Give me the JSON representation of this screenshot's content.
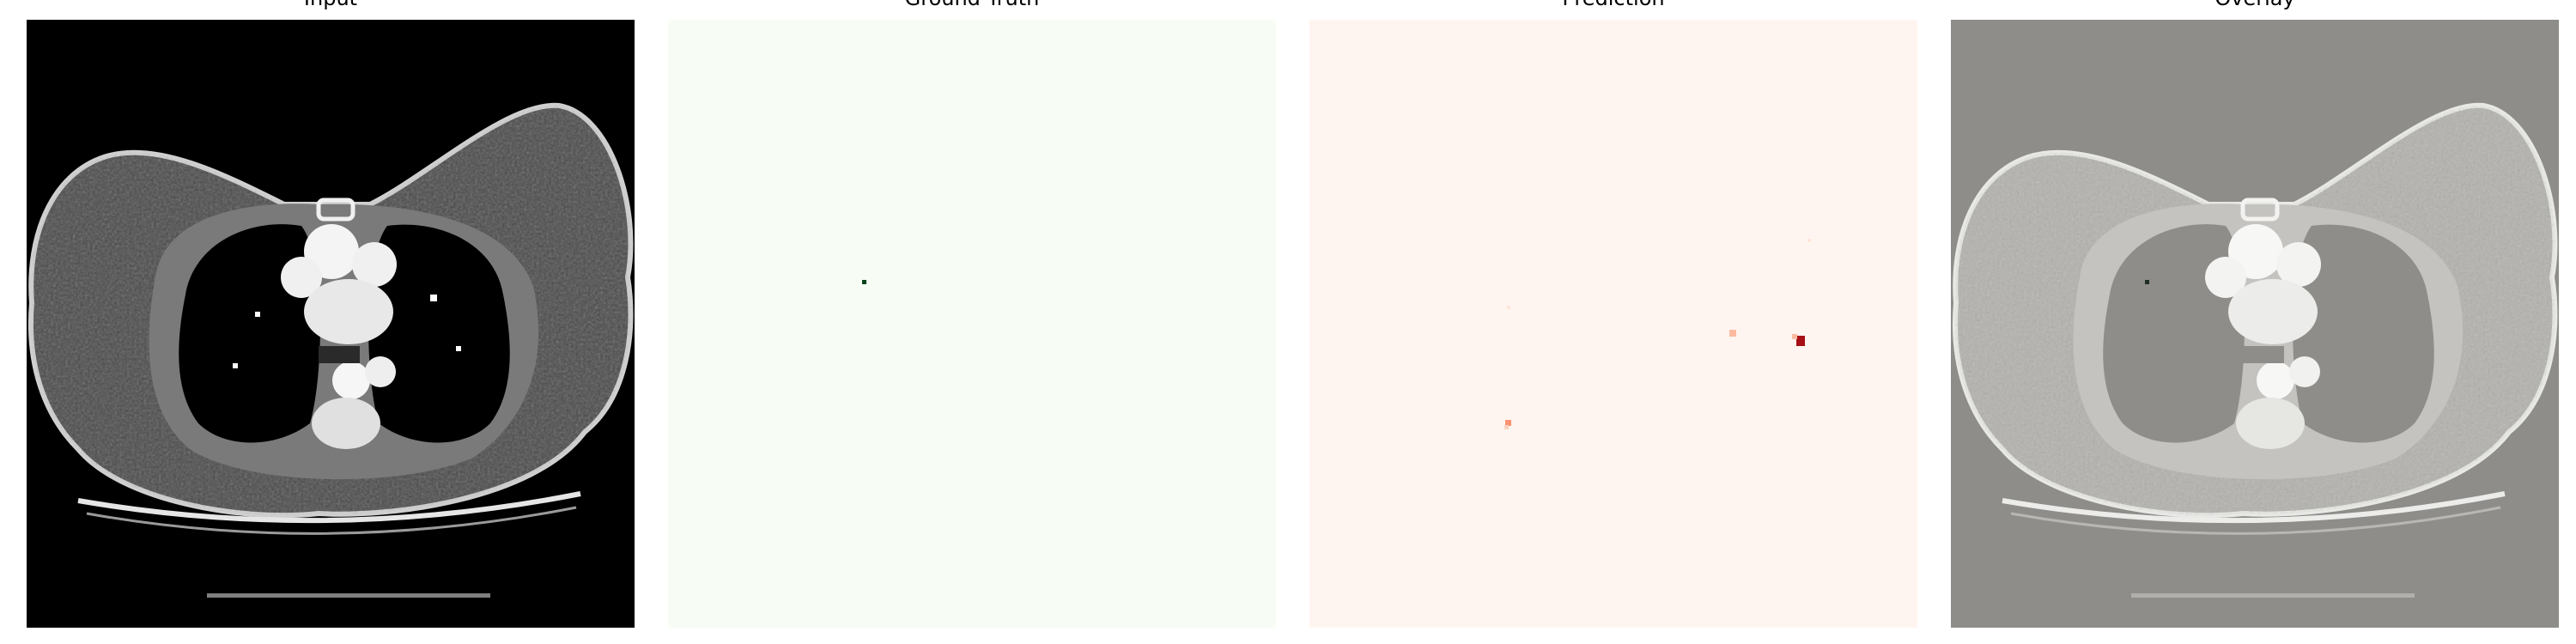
{
  "panels": [
    {
      "id": "input",
      "title": "Input",
      "colormap": "gray"
    },
    {
      "id": "ground_truth",
      "title": "Ground Truth",
      "colormap": "Greens"
    },
    {
      "id": "prediction",
      "title": "Prediction",
      "colormap": "Reds"
    },
    {
      "id": "overlay",
      "title": "Overlay",
      "colormap": "gray-blend"
    }
  ],
  "colors": {
    "input_background": "#000000",
    "ground_truth_background": "#f7fcf5",
    "ground_truth_mark": "#00441b",
    "prediction_background": "#fff5f0",
    "prediction_strong": "#cb181d",
    "prediction_weak": "#fc9272",
    "overlay_background": "#8e8d89",
    "overlay_tissue": "#d9d9d6"
  }
}
